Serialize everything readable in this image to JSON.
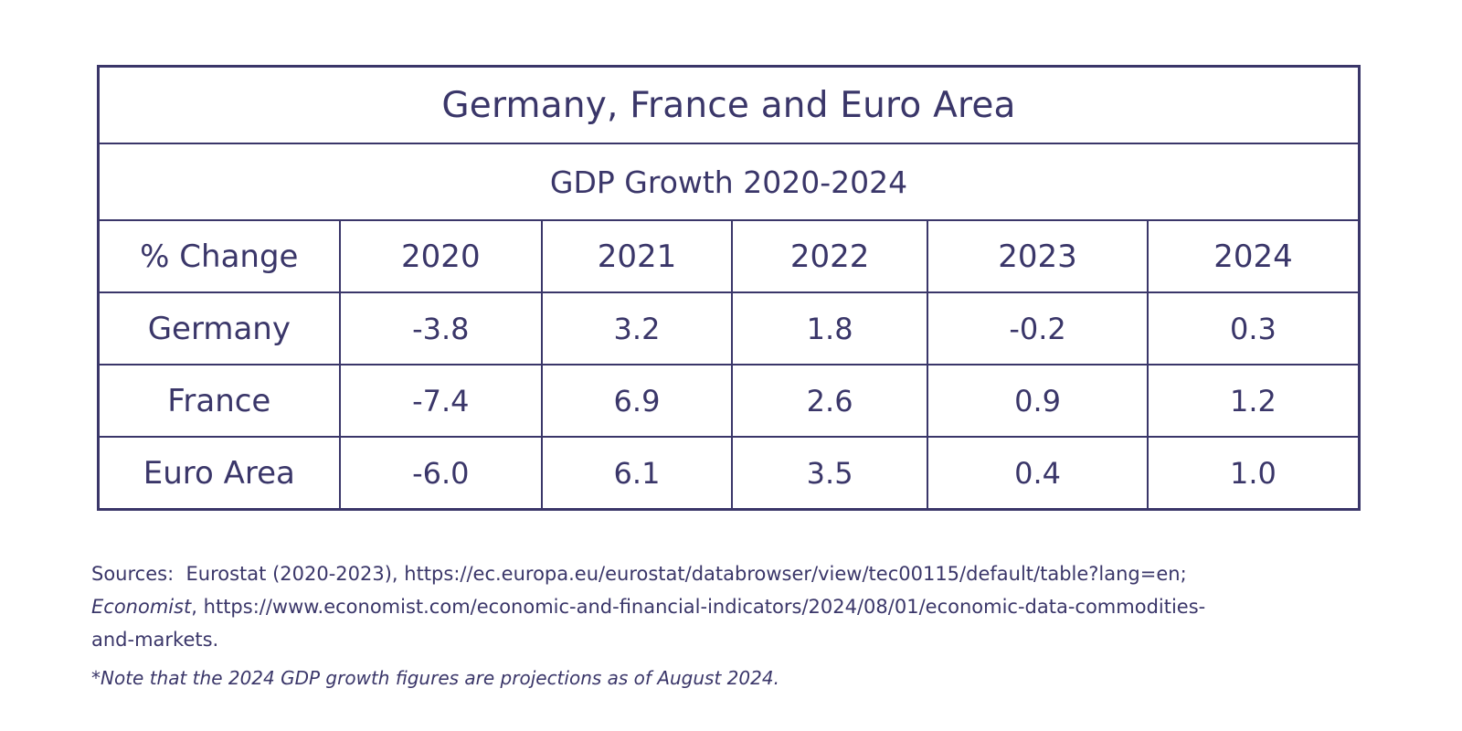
{
  "chart_data": {
    "type": "table",
    "title": "Germany, France and Euro Area",
    "subtitle": "GDP Growth 2020-2024",
    "header_label": "% Change",
    "columns": [
      "2020",
      "2021",
      "2022",
      "2023",
      "2024"
    ],
    "rows": [
      {
        "name": "Germany",
        "values": [
          "-3.8",
          "3.2",
          "1.8",
          "-0.2",
          "0.3"
        ]
      },
      {
        "name": "France",
        "values": [
          "-7.4",
          "6.9",
          "2.6",
          "0.9",
          "1.2"
        ]
      },
      {
        "name": "Euro Area",
        "values": [
          "-6.0",
          "6.1",
          "3.5",
          "0.4",
          "1.0"
        ]
      }
    ]
  },
  "sources": {
    "label": "Sources:",
    "line1_rest": "Eurostat (2020-2023), https://ec.europa.eu/eurostat/databrowser/view/tec00115/default/table?lang=en;",
    "line2_italic": "Economist",
    "line2_rest": ", https://www.economist.com/economic-and-financial-indicators/2024/08/01/economic-data-commodities-",
    "line3": "and-markets."
  },
  "note": "*Note that the 2024 GDP growth figures are projections as of August 2024.",
  "colors": {
    "text": "#3a3669",
    "border": "#3a3669",
    "background": "#ffffff"
  }
}
